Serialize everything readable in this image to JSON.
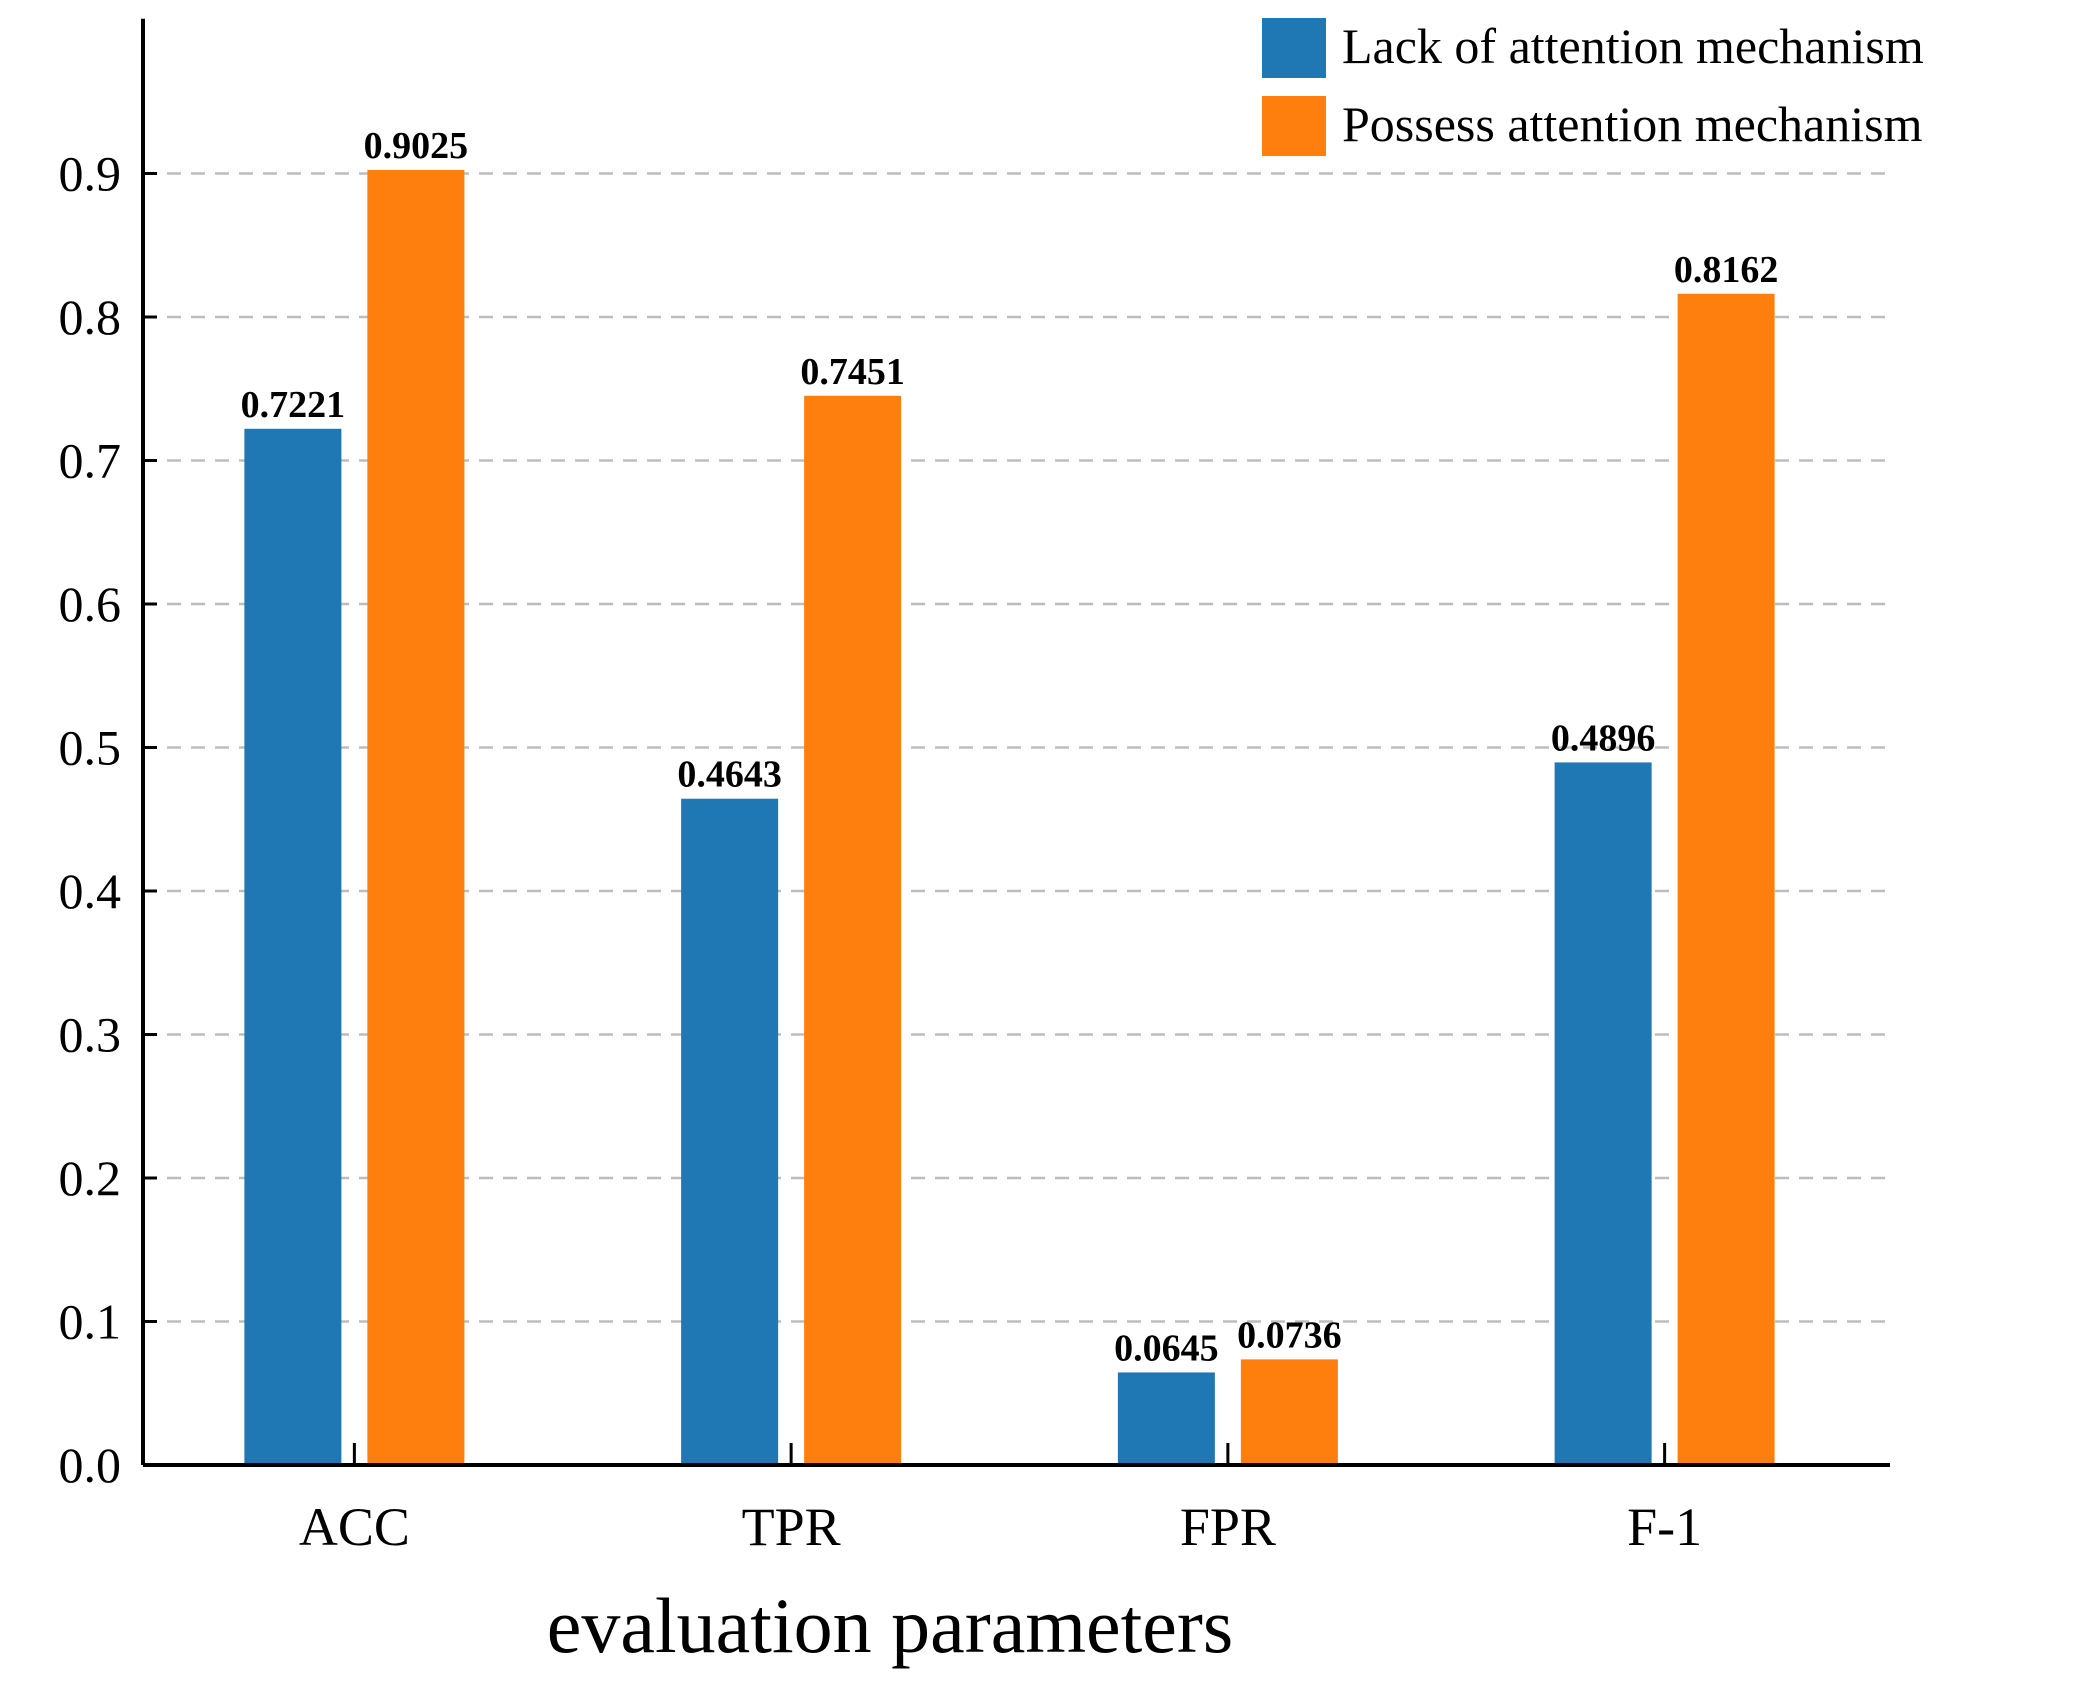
{
  "chart_data": {
    "type": "bar",
    "title": "",
    "xlabel": "evaluation parameters",
    "ylabel": "",
    "categories": [
      "ACC",
      "TPR",
      "FPR",
      "F-1"
    ],
    "series": [
      {
        "name": "Lack of attention mechanism",
        "color": "#1f77b4",
        "values": [
          0.7221,
          0.4643,
          0.0645,
          0.4896
        ],
        "labels": [
          "0.7221",
          "0.4643",
          "0.0645",
          "0.4896"
        ]
      },
      {
        "name": "Possess attention mechanism",
        "color": "#ff7f0e",
        "values": [
          0.9025,
          0.7451,
          0.0736,
          0.8162
        ],
        "labels": [
          "0.9025",
          "0.7451",
          "0.0736",
          "0.8162"
        ]
      }
    ],
    "ylim": [
      0,
      0.98
    ],
    "yticks": [
      0.0,
      0.1,
      0.2,
      0.3,
      0.4,
      0.5,
      0.6,
      0.7,
      0.8,
      0.9
    ],
    "ytick_labels": [
      "0.0",
      "0.1",
      "0.2",
      "0.3",
      "0.4",
      "0.5",
      "0.6",
      "0.7",
      "0.8",
      "0.9"
    ],
    "grid": "horizontal dashed",
    "legend_position": "top-right"
  }
}
